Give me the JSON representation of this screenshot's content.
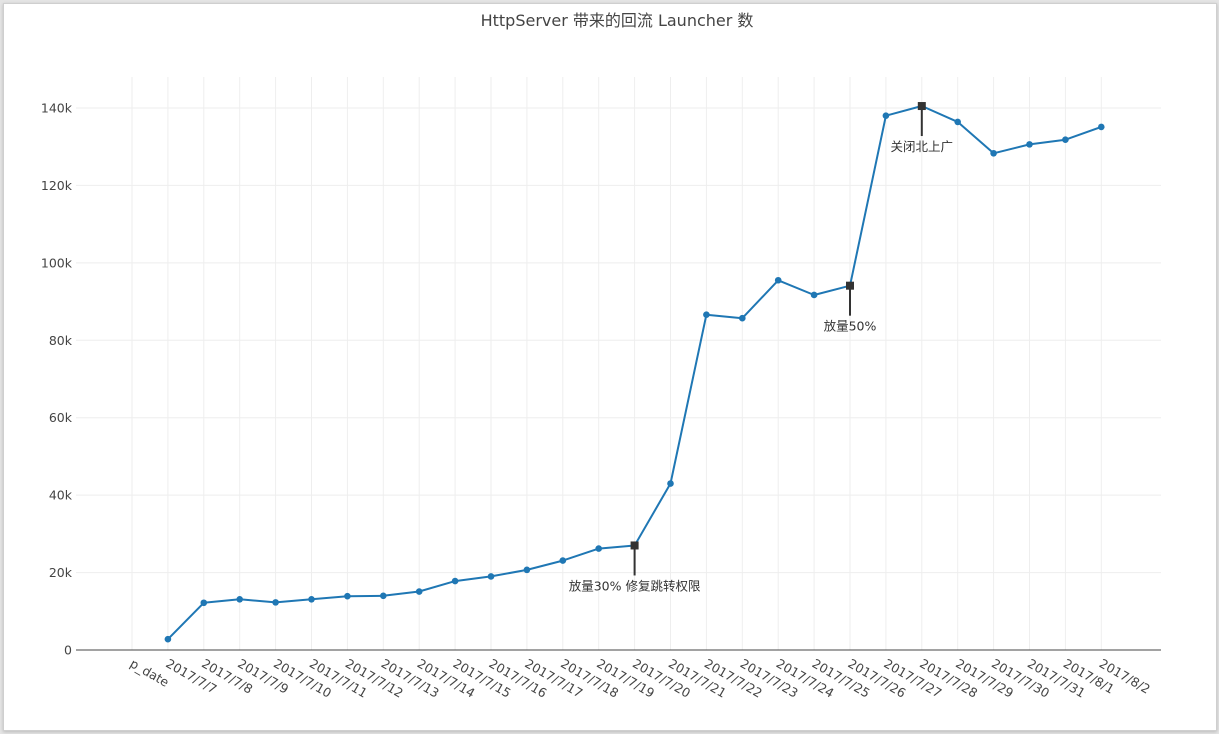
{
  "chart_data": {
    "type": "line",
    "title": "HttpServer 带来的回流 Launcher 数",
    "xlabel": "",
    "ylabel": "",
    "ylim": [
      0,
      148000
    ],
    "y_ticks": [
      0,
      20000,
      40000,
      60000,
      80000,
      100000,
      120000,
      140000
    ],
    "y_tick_labels": [
      "0",
      "20k",
      "40k",
      "60k",
      "80k",
      "100k",
      "120k",
      "140k"
    ],
    "grid": true,
    "line_color": "#1f77b4",
    "annotation_color": "#333333",
    "categories": [
      "p_date",
      "2017/7/7",
      "2017/7/8",
      "2017/7/9",
      "2017/7/10",
      "2017/7/11",
      "2017/7/12",
      "2017/7/13",
      "2017/7/14",
      "2017/7/15",
      "2017/7/16",
      "2017/7/17",
      "2017/7/18",
      "2017/7/19",
      "2017/7/20",
      "2017/7/21",
      "2017/7/22",
      "2017/7/23",
      "2017/7/24",
      "2017/7/25",
      "2017/7/26",
      "2017/7/27",
      "2017/7/28",
      "2017/7/29",
      "2017/7/30",
      "2017/7/31",
      "2017/8/1",
      "2017/8/2"
    ],
    "values": [
      null,
      2800,
      12200,
      13100,
      12300,
      13100,
      13900,
      14000,
      15100,
      17800,
      19000,
      20700,
      23100,
      26200,
      27000,
      43000,
      86600,
      85700,
      95500,
      91700,
      94100,
      138000,
      140500,
      136400,
      128300,
      130600,
      131800,
      135100
    ],
    "annotations": [
      {
        "category": "2017/7/20",
        "value": 27000,
        "text": "放量30%  修复跳转权限"
      },
      {
        "category": "2017/7/26",
        "value": 94100,
        "text": "放量50%"
      },
      {
        "category": "2017/7/28",
        "value": 140500,
        "text": "关闭北上广"
      }
    ]
  }
}
